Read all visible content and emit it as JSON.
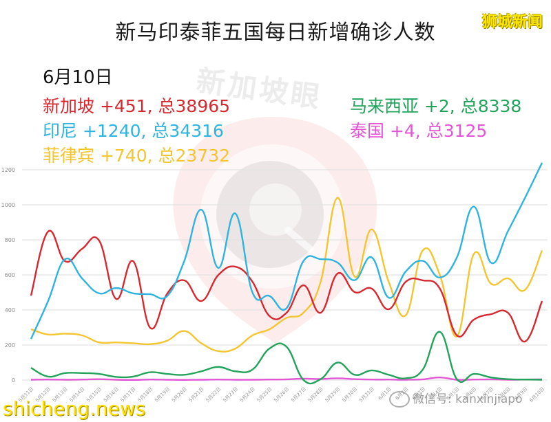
{
  "header": {
    "title": "新马印泰菲五国每日新增确诊人数",
    "brand_top": "狮城新闻"
  },
  "summary": {
    "date": "6月10日",
    "countries": [
      {
        "name": "新加坡",
        "text": "新加坡 +451, 总38965",
        "new": 451,
        "total": 38965,
        "color": "#d7282f"
      },
      {
        "name": "印尼",
        "text": "印尼 +1240, 总34316",
        "new": 1240,
        "total": 34316,
        "color": "#2fb3df"
      },
      {
        "name": "菲律宾",
        "text": "菲律宾 +740, 总23732",
        "new": 740,
        "total": 23732,
        "color": "#f3c530"
      },
      {
        "name": "马来西亚",
        "text": "马来西亚 +2, 总8338",
        "new": 2,
        "total": 8338,
        "color": "#21a35a"
      },
      {
        "name": "泰国",
        "text": "泰国 +4, 总3125",
        "new": 4,
        "total": 3125,
        "color": "#e256d6"
      }
    ]
  },
  "watermarks": {
    "center": "新加坡眼",
    "bottom_left": "shicheng.news",
    "wechat": "微信号: kanxinjiapo"
  },
  "chart_data": {
    "type": "line",
    "title": "新马印泰菲五国每日新增确诊人数",
    "xlabel": "",
    "ylabel": "",
    "ylim": [
      0,
      1200
    ],
    "yticks": [
      0,
      200,
      400,
      600,
      800,
      1000,
      1200
    ],
    "grid": true,
    "legend_position": "top (text annotations)",
    "x": [
      "5月11日",
      "5月12日",
      "5月13日",
      "5月14日",
      "5月15日",
      "5月16日",
      "5月17日",
      "5月18日",
      "5月19日",
      "5月20日",
      "5月21日",
      "5月22日",
      "5月23日",
      "5月24日",
      "5月25日",
      "5月26日",
      "5月27日",
      "5月28日",
      "5月29日",
      "5月30日",
      "5月31日",
      "6月1日",
      "6月2日",
      "6月3日",
      "6月4日",
      "6月5日",
      "6月6日",
      "6月7日",
      "6月8日",
      "6月9日",
      "6月10日"
    ],
    "series": [
      {
        "name": "新加坡",
        "color": "#d7282f",
        "values": [
          482,
          847,
          678,
          749,
          796,
          463,
          678,
          298,
          494,
          569,
          451,
          600,
          647,
          561,
          365,
          384,
          541,
          384,
          608,
          502,
          522,
          404,
          561,
          569,
          522,
          255,
          345,
          376,
          384,
          220,
          451
        ]
      },
      {
        "name": "印尼",
        "color": "#2fb3df",
        "values": [
          235,
          450,
          690,
          580,
          495,
          525,
          495,
          490,
          480,
          680,
          972,
          640,
          950,
          500,
          480,
          410,
          680,
          690,
          670,
          570,
          700,
          470,
          620,
          680,
          585,
          700,
          990,
          670,
          850,
          1040,
          1240
        ]
      },
      {
        "name": "菲律宾",
        "color": "#f3c530",
        "values": [
          290,
          260,
          265,
          255,
          215,
          215,
          210,
          205,
          225,
          280,
          210,
          165,
          180,
          255,
          290,
          355,
          385,
          560,
          1040,
          590,
          860,
          560,
          370,
          740,
          600,
          250,
          720,
          550,
          580,
          515,
          740
        ]
      },
      {
        "name": "马来西亚",
        "color": "#21a35a",
        "values": [
          70,
          20,
          40,
          40,
          35,
          18,
          20,
          45,
          35,
          30,
          50,
          75,
          50,
          60,
          180,
          190,
          0,
          5,
          100,
          30,
          55,
          30,
          10,
          60,
          275,
          5,
          35,
          15,
          5,
          3,
          2
        ]
      },
      {
        "name": "泰国",
        "color": "#e256d6",
        "values": [
          2,
          3,
          2,
          3,
          5,
          2,
          1,
          3,
          2,
          1,
          2,
          3,
          2,
          2,
          3,
          4,
          8,
          6,
          10,
          5,
          3,
          3,
          2,
          4,
          15,
          2,
          3,
          4,
          2,
          3,
          4
        ]
      }
    ]
  }
}
